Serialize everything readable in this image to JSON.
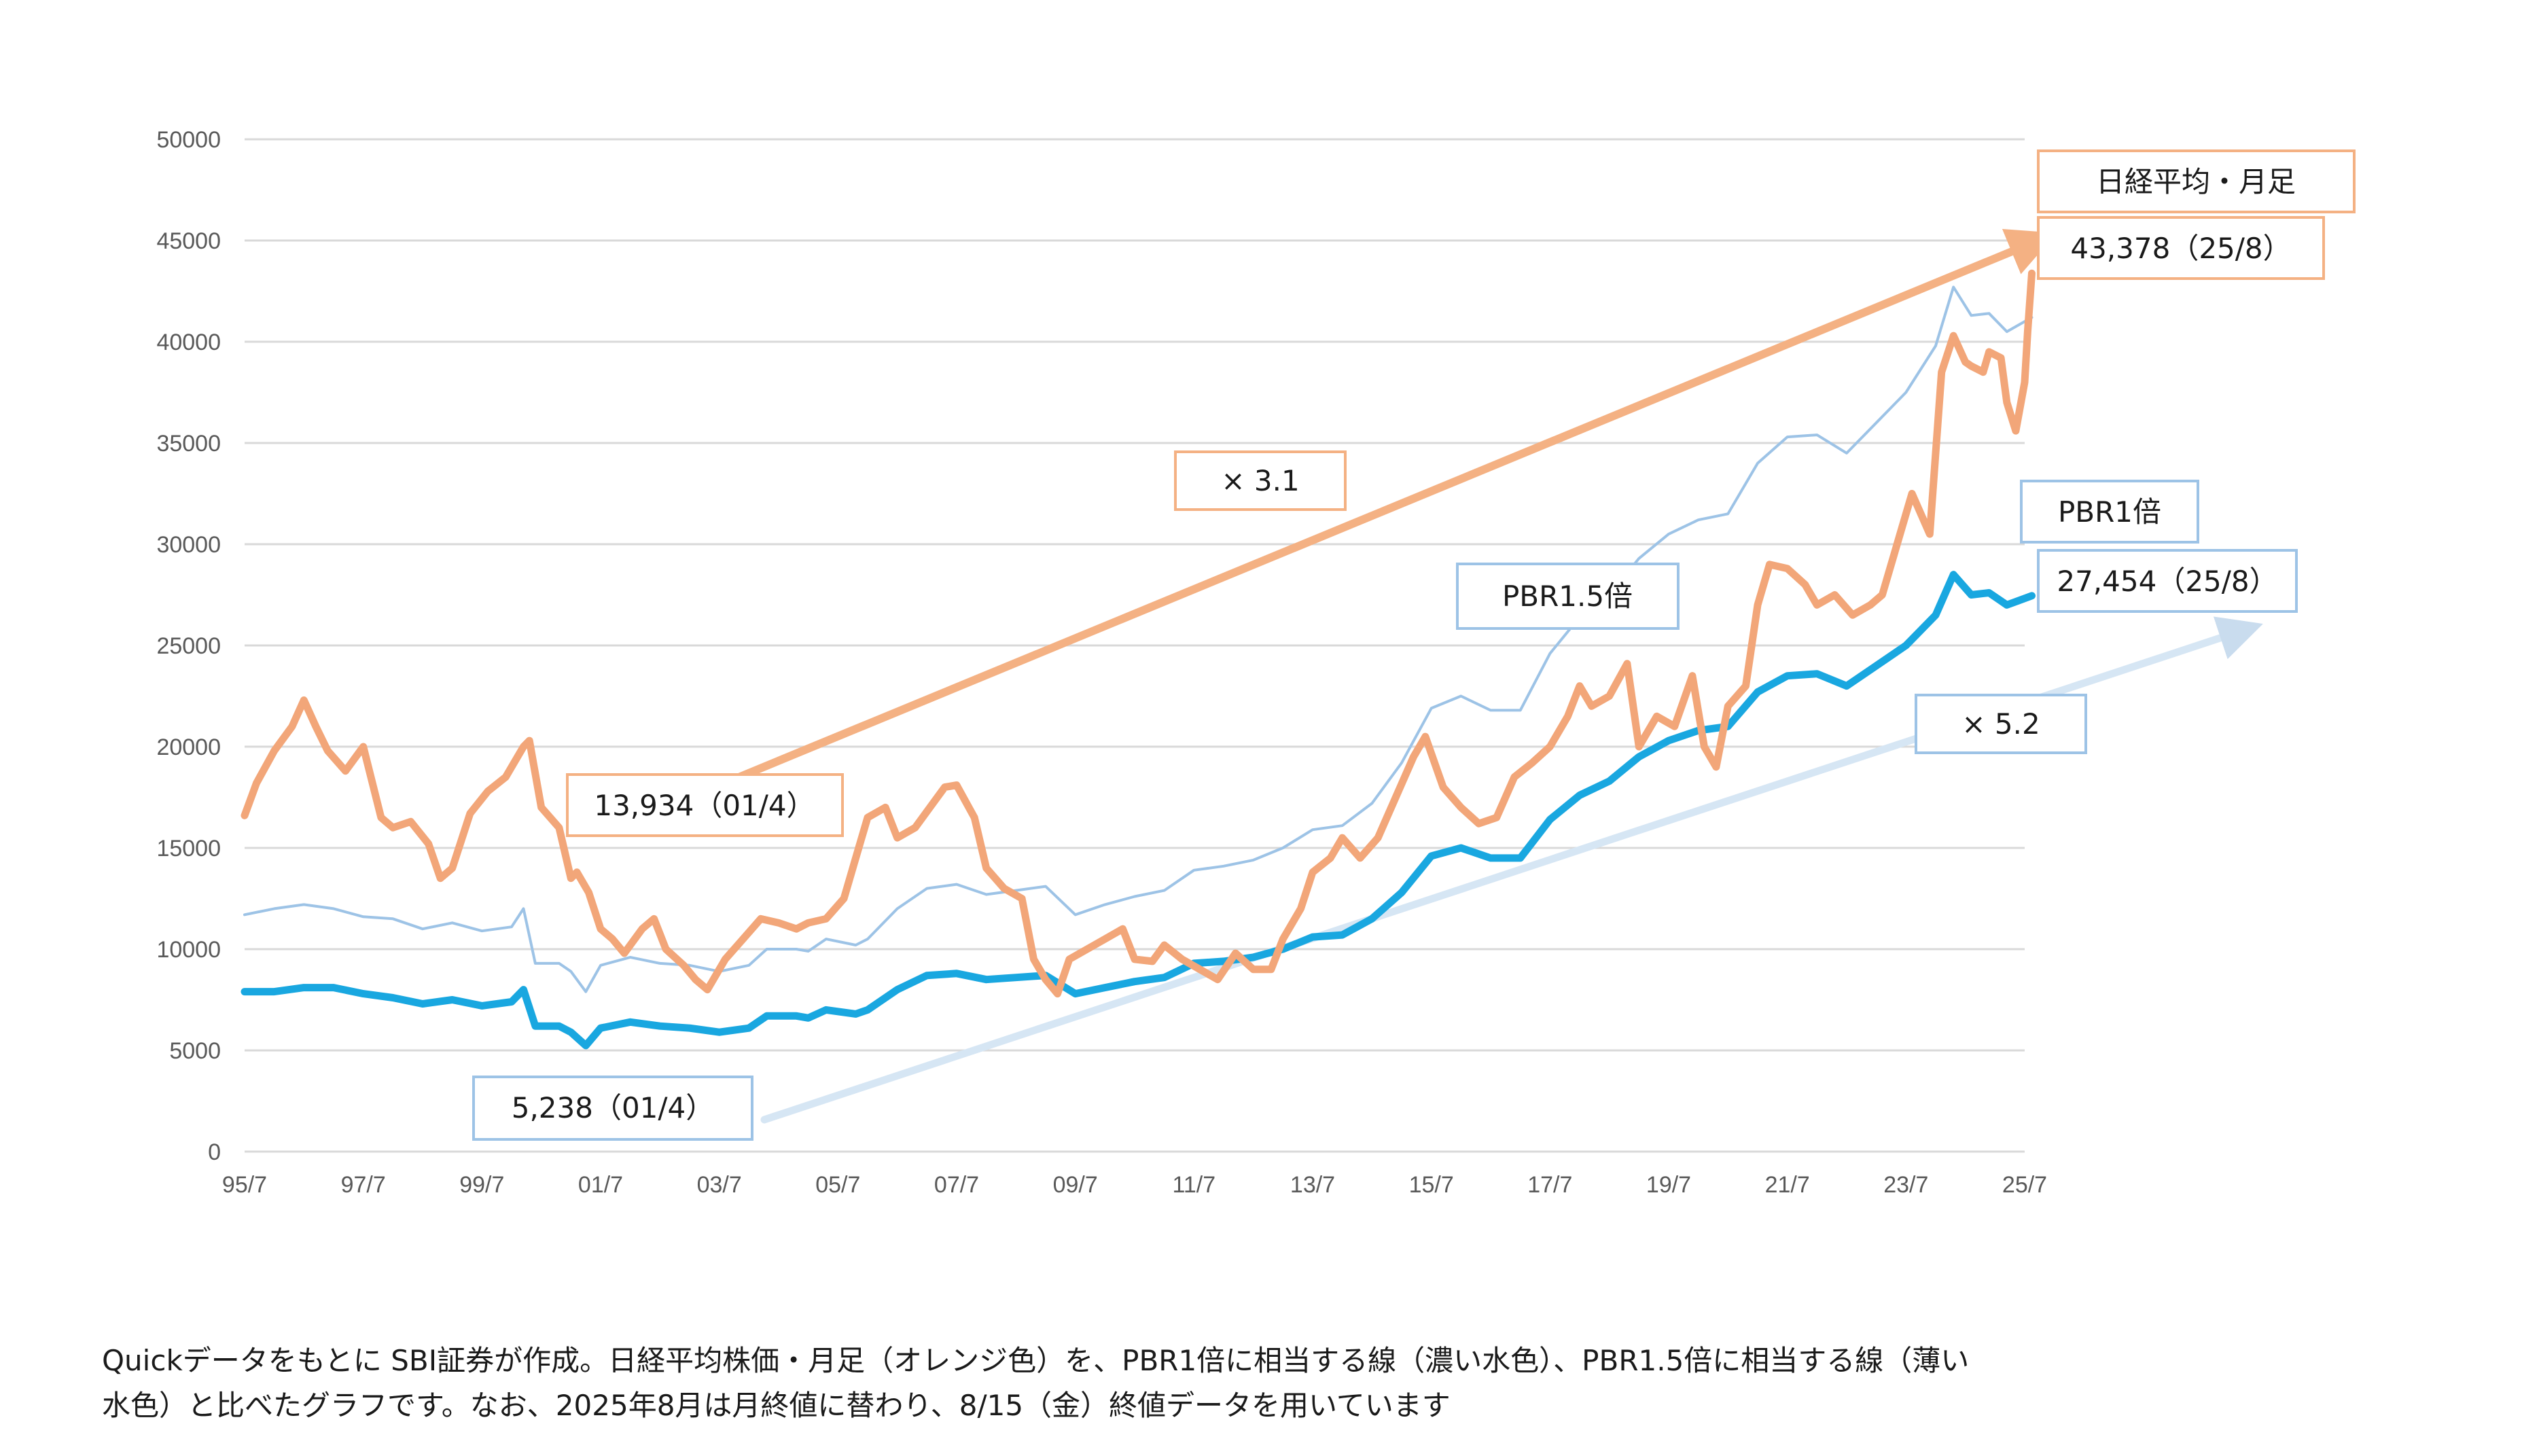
{
  "chart_data": {
    "type": "line",
    "ylim": [
      0,
      50000
    ],
    "yticks": [
      0,
      5000,
      10000,
      15000,
      20000,
      25000,
      30000,
      35000,
      40000,
      45000,
      50000
    ],
    "xticks": [
      "95/7",
      "97/7",
      "99/7",
      "01/7",
      "03/7",
      "05/7",
      "07/7",
      "09/7",
      "11/7",
      "13/7",
      "15/7",
      "17/7",
      "19/7",
      "21/7",
      "23/7",
      "25/7"
    ],
    "grid": true,
    "colors": {
      "nikkei": "#F2A679",
      "pbr1": "#19A7E0",
      "pbr15": "#9DC3E6",
      "arrow_orange": "#F4B183",
      "arrow_blue": "#D6E6F4",
      "box_orange": "#F4B183",
      "box_blue": "#9DC3E6"
    },
    "series": [
      {
        "key": "nikkei",
        "values": [
          [
            1995.5,
            16600
          ],
          [
            1995.7,
            18200
          ],
          [
            1996.0,
            19800
          ],
          [
            1996.3,
            21000
          ],
          [
            1996.5,
            22300
          ],
          [
            1996.7,
            21000
          ],
          [
            1996.9,
            19800
          ],
          [
            1997.2,
            18800
          ],
          [
            1997.5,
            20000
          ],
          [
            1997.8,
            16500
          ],
          [
            1998.0,
            16000
          ],
          [
            1998.3,
            16300
          ],
          [
            1998.6,
            15200
          ],
          [
            1998.8,
            13500
          ],
          [
            1999.0,
            14000
          ],
          [
            1999.3,
            16700
          ],
          [
            1999.6,
            17800
          ],
          [
            1999.9,
            18500
          ],
          [
            2000.2,
            20000
          ],
          [
            2000.3,
            20300
          ],
          [
            2000.5,
            17000
          ],
          [
            2000.8,
            16000
          ],
          [
            2001.0,
            13500
          ],
          [
            2001.1,
            13800
          ],
          [
            2001.3,
            12800
          ],
          [
            2001.5,
            11000
          ],
          [
            2001.7,
            10500
          ],
          [
            2001.9,
            9800
          ],
          [
            2002.2,
            11000
          ],
          [
            2002.4,
            11500
          ],
          [
            2002.6,
            10000
          ],
          [
            2002.9,
            9200
          ],
          [
            2003.1,
            8500
          ],
          [
            2003.3,
            8000
          ],
          [
            2003.6,
            9500
          ],
          [
            2003.9,
            10500
          ],
          [
            2004.2,
            11500
          ],
          [
            2004.5,
            11300
          ],
          [
            2004.8,
            11000
          ],
          [
            2005.0,
            11300
          ],
          [
            2005.3,
            11500
          ],
          [
            2005.6,
            12500
          ],
          [
            2005.8,
            14500
          ],
          [
            2006.0,
            16500
          ],
          [
            2006.3,
            17000
          ],
          [
            2006.5,
            15500
          ],
          [
            2006.8,
            16000
          ],
          [
            2007.1,
            17200
          ],
          [
            2007.3,
            18000
          ],
          [
            2007.5,
            18100
          ],
          [
            2007.8,
            16500
          ],
          [
            2008.0,
            14000
          ],
          [
            2008.3,
            13000
          ],
          [
            2008.6,
            12500
          ],
          [
            2008.8,
            9500
          ],
          [
            2009.0,
            8500
          ],
          [
            2009.2,
            7800
          ],
          [
            2009.4,
            9500
          ],
          [
            2009.7,
            10000
          ],
          [
            2010.0,
            10500
          ],
          [
            2010.3,
            11000
          ],
          [
            2010.5,
            9500
          ],
          [
            2010.8,
            9400
          ],
          [
            2011.0,
            10200
          ],
          [
            2011.3,
            9500
          ],
          [
            2011.6,
            9000
          ],
          [
            2011.9,
            8500
          ],
          [
            2012.2,
            9800
          ],
          [
            2012.5,
            9000
          ],
          [
            2012.8,
            9000
          ],
          [
            2013.0,
            10500
          ],
          [
            2013.3,
            12000
          ],
          [
            2013.5,
            13800
          ],
          [
            2013.8,
            14500
          ],
          [
            2014.0,
            15500
          ],
          [
            2014.3,
            14500
          ],
          [
            2014.6,
            15500
          ],
          [
            2014.9,
            17500
          ],
          [
            2015.2,
            19500
          ],
          [
            2015.4,
            20500
          ],
          [
            2015.7,
            18000
          ],
          [
            2016.0,
            17000
          ],
          [
            2016.3,
            16200
          ],
          [
            2016.6,
            16500
          ],
          [
            2016.9,
            18500
          ],
          [
            2017.2,
            19200
          ],
          [
            2017.5,
            20000
          ],
          [
            2017.8,
            21500
          ],
          [
            2018.0,
            23000
          ],
          [
            2018.2,
            22000
          ],
          [
            2018.5,
            22500
          ],
          [
            2018.8,
            24100
          ],
          [
            2019.0,
            20000
          ],
          [
            2019.3,
            21500
          ],
          [
            2019.6,
            21000
          ],
          [
            2019.9,
            23500
          ],
          [
            2020.1,
            20000
          ],
          [
            2020.3,
            19000
          ],
          [
            2020.5,
            22000
          ],
          [
            2020.8,
            23000
          ],
          [
            2021.0,
            27000
          ],
          [
            2021.2,
            29000
          ],
          [
            2021.5,
            28800
          ],
          [
            2021.8,
            28000
          ],
          [
            2022.0,
            27000
          ],
          [
            2022.3,
            27500
          ],
          [
            2022.6,
            26500
          ],
          [
            2022.9,
            27000
          ],
          [
            2023.1,
            27500
          ],
          [
            2023.4,
            30500
          ],
          [
            2023.6,
            32500
          ],
          [
            2023.9,
            30500
          ],
          [
            2024.1,
            38500
          ],
          [
            2024.3,
            40300
          ],
          [
            2024.5,
            39000
          ],
          [
            2024.6,
            38800
          ],
          [
            2024.8,
            38500
          ],
          [
            2024.9,
            39500
          ],
          [
            2025.1,
            39200
          ],
          [
            2025.2,
            37000
          ],
          [
            2025.35,
            35600
          ],
          [
            2025.5,
            38000
          ],
          [
            2025.55,
            40500
          ],
          [
            2025.62,
            43378
          ]
        ]
      },
      {
        "key": "pbr1",
        "values": [
          [
            1995.5,
            7900
          ],
          [
            1996.0,
            7900
          ],
          [
            1996.5,
            8100
          ],
          [
            1997.0,
            8100
          ],
          [
            1997.5,
            7800
          ],
          [
            1998.0,
            7600
          ],
          [
            1998.5,
            7300
          ],
          [
            1999.0,
            7500
          ],
          [
            1999.5,
            7200
          ],
          [
            2000.0,
            7400
          ],
          [
            2000.2,
            8000
          ],
          [
            2000.4,
            6200
          ],
          [
            2000.8,
            6200
          ],
          [
            2001.0,
            5900
          ],
          [
            2001.25,
            5238
          ],
          [
            2001.5,
            6100
          ],
          [
            2002.0,
            6400
          ],
          [
            2002.5,
            6200
          ],
          [
            2003.0,
            6100
          ],
          [
            2003.5,
            5900
          ],
          [
            2004.0,
            6100
          ],
          [
            2004.3,
            6700
          ],
          [
            2004.8,
            6700
          ],
          [
            2005.0,
            6600
          ],
          [
            2005.3,
            7000
          ],
          [
            2005.8,
            6800
          ],
          [
            2006.0,
            7000
          ],
          [
            2006.5,
            8000
          ],
          [
            2007.0,
            8700
          ],
          [
            2007.5,
            8800
          ],
          [
            2008.0,
            8500
          ],
          [
            2008.5,
            8600
          ],
          [
            2009.0,
            8700
          ],
          [
            2009.5,
            7800
          ],
          [
            2010.0,
            8100
          ],
          [
            2010.5,
            8400
          ],
          [
            2011.0,
            8600
          ],
          [
            2011.5,
            9300
          ],
          [
            2012.0,
            9400
          ],
          [
            2012.5,
            9600
          ],
          [
            2013.0,
            10000
          ],
          [
            2013.5,
            10600
          ],
          [
            2014.0,
            10700
          ],
          [
            2014.5,
            11500
          ],
          [
            2015.0,
            12800
          ],
          [
            2015.5,
            14600
          ],
          [
            2016.0,
            15000
          ],
          [
            2016.5,
            14500
          ],
          [
            2017.0,
            14500
          ],
          [
            2017.5,
            16400
          ],
          [
            2018.0,
            17600
          ],
          [
            2018.5,
            18300
          ],
          [
            2019.0,
            19500
          ],
          [
            2019.5,
            20300
          ],
          [
            2020.0,
            20800
          ],
          [
            2020.5,
            21000
          ],
          [
            2021.0,
            22700
          ],
          [
            2021.5,
            23500
          ],
          [
            2022.0,
            23600
          ],
          [
            2022.5,
            23000
          ],
          [
            2023.0,
            24000
          ],
          [
            2023.5,
            25000
          ],
          [
            2024.0,
            26500
          ],
          [
            2024.3,
            28500
          ],
          [
            2024.6,
            27500
          ],
          [
            2024.9,
            27600
          ],
          [
            2025.2,
            27000
          ],
          [
            2025.62,
            27454
          ]
        ]
      },
      {
        "key": "pbr15",
        "values": [
          [
            1995.5,
            11700
          ],
          [
            1996.0,
            12000
          ],
          [
            1996.5,
            12200
          ],
          [
            1997.0,
            12000
          ],
          [
            1997.5,
            11600
          ],
          [
            1998.0,
            11500
          ],
          [
            1998.5,
            11000
          ],
          [
            1999.0,
            11300
          ],
          [
            1999.5,
            10900
          ],
          [
            2000.0,
            11100
          ],
          [
            2000.2,
            12000
          ],
          [
            2000.4,
            9300
          ],
          [
            2000.8,
            9300
          ],
          [
            2001.0,
            8900
          ],
          [
            2001.25,
            7900
          ],
          [
            2001.5,
            9200
          ],
          [
            2002.0,
            9600
          ],
          [
            2002.5,
            9300
          ],
          [
            2003.0,
            9200
          ],
          [
            2003.5,
            8900
          ],
          [
            2004.0,
            9200
          ],
          [
            2004.3,
            10000
          ],
          [
            2004.8,
            10000
          ],
          [
            2005.0,
            9900
          ],
          [
            2005.3,
            10500
          ],
          [
            2005.8,
            10200
          ],
          [
            2006.0,
            10500
          ],
          [
            2006.5,
            12000
          ],
          [
            2007.0,
            13000
          ],
          [
            2007.5,
            13200
          ],
          [
            2008.0,
            12700
          ],
          [
            2008.5,
            12900
          ],
          [
            2009.0,
            13100
          ],
          [
            2009.5,
            11700
          ],
          [
            2010.0,
            12200
          ],
          [
            2010.5,
            12600
          ],
          [
            2011.0,
            12900
          ],
          [
            2011.5,
            13900
          ],
          [
            2012.0,
            14100
          ],
          [
            2012.5,
            14400
          ],
          [
            2013.0,
            15000
          ],
          [
            2013.5,
            15900
          ],
          [
            2014.0,
            16100
          ],
          [
            2014.5,
            17200
          ],
          [
            2015.0,
            19200
          ],
          [
            2015.5,
            21900
          ],
          [
            2016.0,
            22500
          ],
          [
            2016.5,
            21800
          ],
          [
            2017.0,
            21800
          ],
          [
            2017.5,
            24600
          ],
          [
            2018.0,
            26400
          ],
          [
            2018.5,
            27500
          ],
          [
            2019.0,
            29300
          ],
          [
            2019.5,
            30500
          ],
          [
            2020.0,
            31200
          ],
          [
            2020.5,
            31500
          ],
          [
            2021.0,
            34000
          ],
          [
            2021.5,
            35300
          ],
          [
            2022.0,
            35400
          ],
          [
            2022.5,
            34500
          ],
          [
            2023.0,
            36000
          ],
          [
            2023.5,
            37500
          ],
          [
            2024.0,
            39800
          ],
          [
            2024.3,
            42700
          ],
          [
            2024.6,
            41300
          ],
          [
            2024.9,
            41400
          ],
          [
            2025.2,
            40500
          ],
          [
            2025.62,
            41200
          ]
        ]
      }
    ],
    "annotations": {
      "nikkei_label": "日経平均・月足",
      "nikkei_end": "43,378（25/8）",
      "nikkei_start": "13,934（01/4）",
      "nikkei_mult": "× 3.1",
      "pbr1_label": "PBR1倍",
      "pbr1_end": "27,454（25/8）",
      "pbr1_start": "5,238（01/4）",
      "pbr1_mult": "× 5.2",
      "pbr15_label": "PBR1.5倍"
    }
  },
  "caption": {
    "line1": "Quickデータをもとに SBI証券が作成。日経平均株価・月足（オレンジ色）を、PBR1倍に相当する線（濃い水色）、PBR1.5倍に相当する線（薄い",
    "line2": "水色）と比べたグラフです。なお、2025年8月は月終値に替わり、8/15（金）終値データを用いています"
  }
}
